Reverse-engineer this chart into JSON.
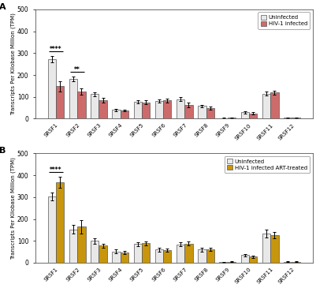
{
  "categories": [
    "SRSF1",
    "SRSF2",
    "SRSF3",
    "SRSF4",
    "SRSF5",
    "SRSF6",
    "SRSF7",
    "SRSF8",
    "SRSF9",
    "SRSF10",
    "SRSF11",
    "SRSF12"
  ],
  "panel_A": {
    "uninfected": [
      272,
      183,
      112,
      40,
      78,
      80,
      90,
      58,
      3,
      30,
      115,
      5
    ],
    "infected": [
      148,
      125,
      85,
      38,
      75,
      83,
      63,
      50,
      4,
      25,
      120,
      4
    ],
    "uninf_err": [
      15,
      10,
      8,
      5,
      7,
      7,
      8,
      6,
      2,
      5,
      8,
      2
    ],
    "inf_err": [
      25,
      15,
      10,
      5,
      8,
      8,
      10,
      7,
      2,
      5,
      9,
      2
    ],
    "bar_color_uninf": "#e8e8e8",
    "bar_color_inf": "#cd6b6b",
    "legend1": "Uninfected",
    "legend2": "HIV-1 infected",
    "sig_pairs": [
      [
        0,
        "****"
      ],
      [
        1,
        "**"
      ]
    ]
  },
  "panel_B": {
    "uninfected": [
      302,
      153,
      100,
      52,
      85,
      60,
      83,
      60,
      3,
      35,
      133,
      5
    ],
    "infected": [
      368,
      165,
      78,
      47,
      90,
      58,
      88,
      62,
      5,
      28,
      125,
      4
    ],
    "uninf_err": [
      18,
      20,
      12,
      8,
      9,
      8,
      9,
      8,
      2,
      5,
      18,
      2
    ],
    "inf_err": [
      25,
      30,
      10,
      7,
      9,
      8,
      9,
      8,
      2,
      5,
      15,
      2
    ],
    "bar_color_uninf": "#e8e8e8",
    "bar_color_inf": "#c8960c",
    "legend1": "Uninfected",
    "legend2": "HIV-1 infected ART-treated",
    "sig_pairs": [
      [
        0,
        "****"
      ]
    ]
  },
  "ylabel": "Transcripts Per Kilobase Million (TPM)",
  "ylim": [
    0,
    500
  ],
  "yticks": [
    0,
    100,
    200,
    300,
    400,
    500
  ],
  "bar_width": 0.38,
  "figure_bg": "#ffffff",
  "axes_bg": "#ffffff"
}
